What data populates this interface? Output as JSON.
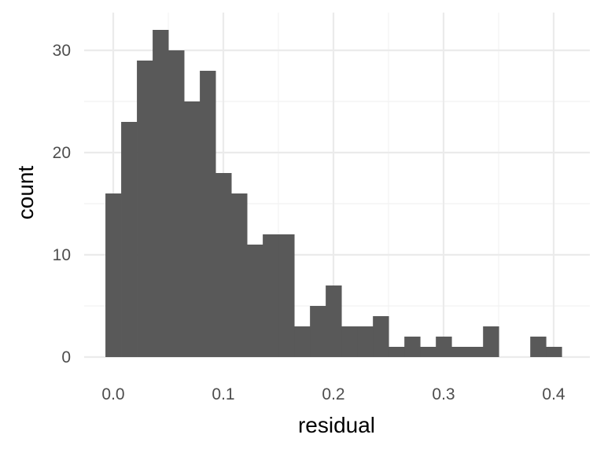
{
  "chart_data": {
    "type": "histogram",
    "title": "",
    "xlabel": "residual",
    "ylabel": "count",
    "xlim": [
      -0.015,
      0.415
    ],
    "ylim": [
      0,
      33
    ],
    "x_ticks": [
      0.0,
      0.1,
      0.2,
      0.3,
      0.4
    ],
    "x_tick_labels": [
      "0.0",
      "0.1",
      "0.2",
      "0.3",
      "0.4"
    ],
    "y_ticks": [
      0,
      10,
      20,
      30
    ],
    "y_tick_labels": [
      "0",
      "10",
      "20",
      "30"
    ],
    "bin_width": 0.01429,
    "bin_start": -0.0071,
    "counts": [
      16,
      23,
      29,
      32,
      30,
      25,
      28,
      18,
      16,
      11,
      12,
      12,
      3,
      5,
      7,
      3,
      3,
      4,
      1,
      2,
      1,
      2,
      1,
      1,
      3,
      0,
      0,
      2,
      1
    ],
    "grid": true,
    "bar_color": "#595959"
  }
}
